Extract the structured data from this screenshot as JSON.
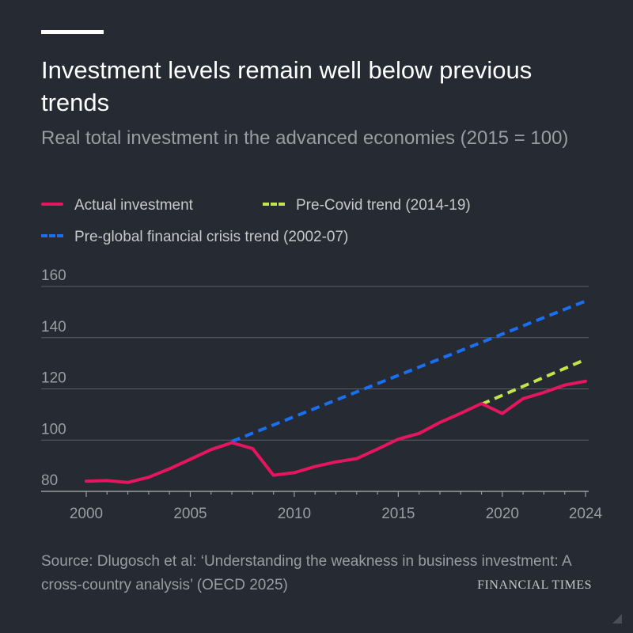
{
  "header": {
    "title": "Investment levels remain well below previous trends",
    "subtitle": "Real total investment in the advanced economies (2015 = 100)"
  },
  "legend": {
    "items": [
      {
        "label": "Actual investment",
        "color": "#e5165f",
        "style": "solid"
      },
      {
        "label": "Pre-Covid trend (2014-19)",
        "color": "#c2e64a",
        "style": "dashed"
      },
      {
        "label": "Pre-global financial crisis trend (2002-07)",
        "color": "#1a6ef0",
        "style": "dashed"
      }
    ]
  },
  "footer": {
    "source": "Source: Dlugosch et al: ‘Understanding the weakness in business investment: A cross-country analysis’ (OECD 2025)",
    "brand": "FINANCIAL TIMES"
  },
  "chart_data": {
    "type": "line",
    "title": "Investment levels remain well below previous trends",
    "subtitle": "Real total investment in the advanced economies (2015 = 100)",
    "xlabel": "",
    "ylabel": "",
    "xlim": [
      2000,
      2024
    ],
    "ylim": [
      80,
      160
    ],
    "x_ticks": [
      2000,
      2005,
      2010,
      2015,
      2020,
      2024
    ],
    "y_ticks": [
      80,
      100,
      120,
      140,
      160
    ],
    "grid": "horizontal",
    "legend_position": "top",
    "series": [
      {
        "name": "Actual investment",
        "color": "#e5165f",
        "dashed": false,
        "x": [
          2000,
          2001,
          2002,
          2003,
          2004,
          2005,
          2006,
          2007,
          2008,
          2009,
          2010,
          2011,
          2012,
          2013,
          2014,
          2015,
          2016,
          2017,
          2018,
          2019,
          2020,
          2021,
          2022,
          2023,
          2024
        ],
        "y": [
          84,
          84.2,
          83.5,
          85.5,
          88.8,
          92.5,
          96.3,
          99,
          96.7,
          86.3,
          87.3,
          89.7,
          91.5,
          92.8,
          96.5,
          100.4,
          102.6,
          106.9,
          110.5,
          114.3,
          110.4,
          116.2,
          118.6,
          121.5,
          123
        ]
      },
      {
        "name": "Pre-Covid trend (2014-19)",
        "color": "#c2e64a",
        "dashed": true,
        "x": [
          2019,
          2024
        ],
        "y": [
          114,
          131.5
        ]
      },
      {
        "name": "Pre-global financial crisis trend (2002-07)",
        "color": "#1a6ef0",
        "dashed": true,
        "x": [
          2007,
          2024
        ],
        "y": [
          99.5,
          154.3
        ]
      }
    ]
  }
}
